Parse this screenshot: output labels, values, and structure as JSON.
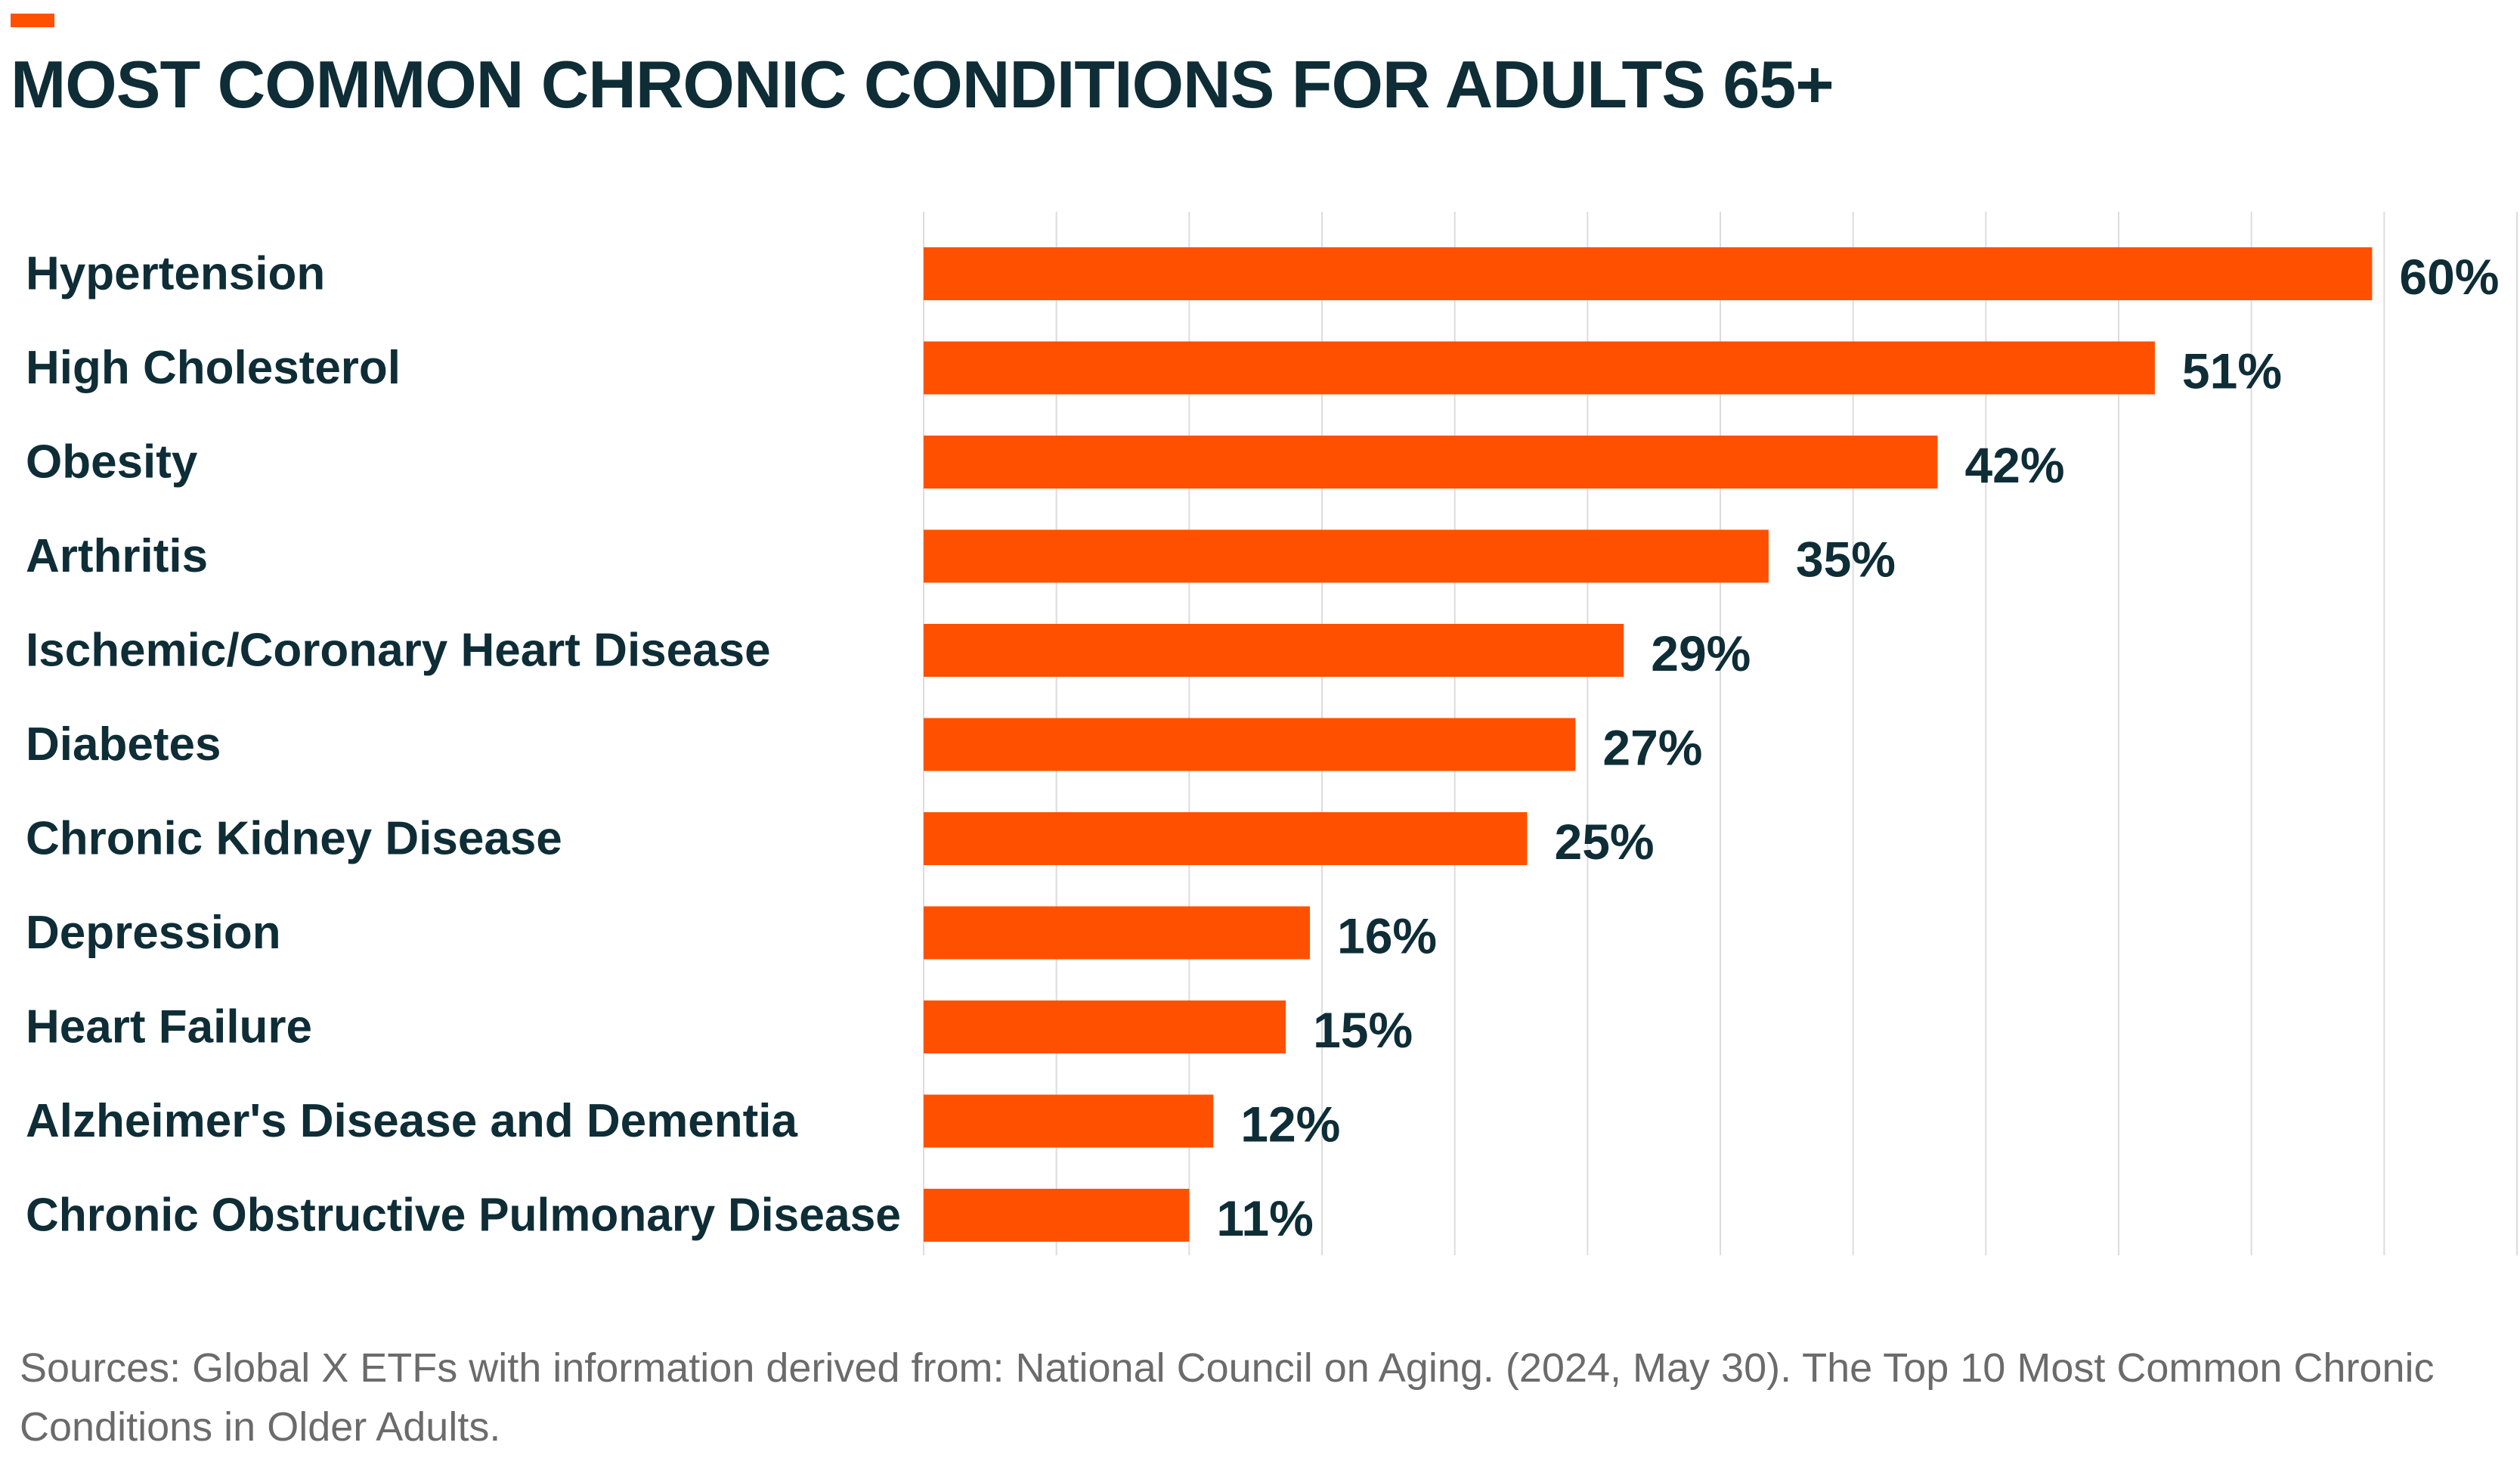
{
  "header": {
    "title": "MOST COMMON CHRONIC CONDITIONS FOR ADULTS 65+"
  },
  "colors": {
    "bar": "#FF5000",
    "accent": "#FF5000",
    "text": "#0E2D36",
    "grid": "#DCDCDC",
    "source": "#6B6B6B"
  },
  "chart_data": {
    "type": "bar",
    "orientation": "horizontal",
    "categories": [
      "Hypertension",
      "High Cholesterol",
      "Obesity",
      "Arthritis",
      "Ischemic/Coronary Heart Disease",
      "Diabetes",
      "Chronic Kidney Disease",
      "Depression",
      "Heart Failure",
      "Alzheimer's Disease and Dementia",
      "Chronic Obstructive Pulmonary Disease"
    ],
    "values": [
      60,
      51,
      42,
      35,
      29,
      27,
      25,
      16,
      15,
      12,
      11
    ],
    "value_labels": [
      "60%",
      "51%",
      "42%",
      "35%",
      "29%",
      "27%",
      "25%",
      "16%",
      "15%",
      "12%",
      "11%"
    ],
    "title": "MOST COMMON CHRONIC CONDITIONS FOR ADULTS 65+",
    "xlabel": "",
    "ylabel": "",
    "xlim": [
      0,
      66
    ],
    "grid": true,
    "grid_step": 5.5,
    "legend": "none"
  },
  "footer": {
    "source": "Sources: Global X ETFs with information derived from: National Council on Aging. (2024, May 30). The Top 10 Most Common Chronic Conditions in Older Adults."
  }
}
